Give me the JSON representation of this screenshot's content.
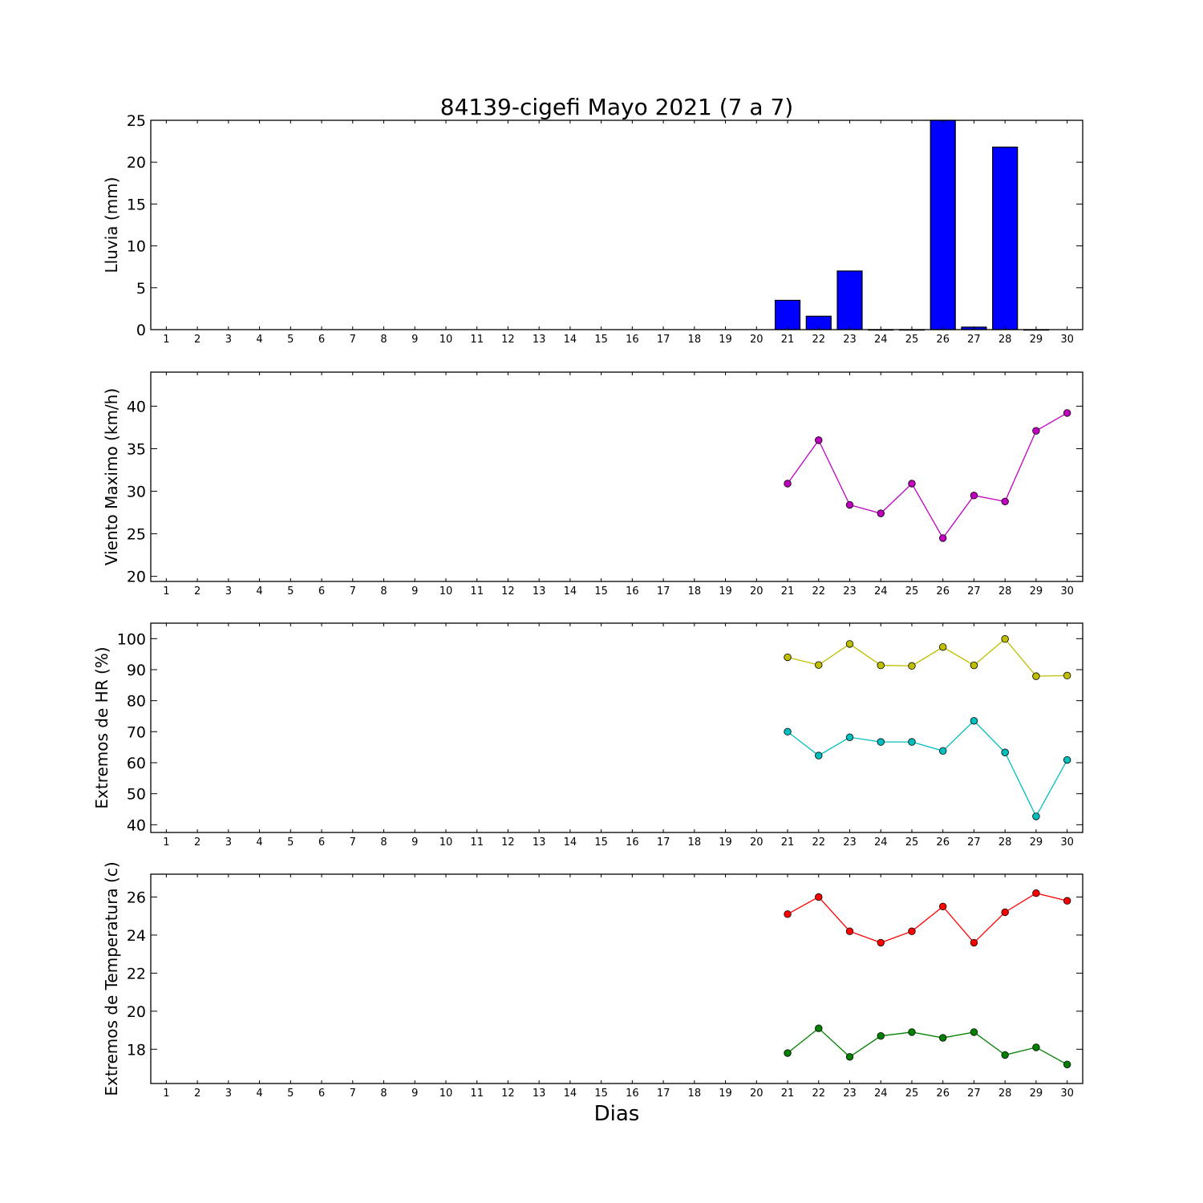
{
  "title": "84139-cigefi Mayo 2021  (7 a 7)",
  "xlabel": "Dias",
  "colors": {
    "bar": "#0000ff",
    "viento": "#bf00bf",
    "hr_max": "#bfbf00",
    "hr_min": "#00bfbf",
    "temp_max": "#ff0000",
    "temp_min": "#008000"
  },
  "chart_data": [
    {
      "type": "bar",
      "ylabel": "Lluvia (mm)",
      "ylim": [
        0,
        25
      ],
      "yticks": [
        0,
        5,
        10,
        15,
        20,
        25
      ],
      "x": [
        1,
        2,
        3,
        4,
        5,
        6,
        7,
        8,
        9,
        10,
        11,
        12,
        13,
        14,
        15,
        16,
        17,
        18,
        19,
        20,
        21,
        22,
        23,
        24,
        25,
        26,
        27,
        28,
        29,
        30
      ],
      "categories": [
        21,
        22,
        23,
        24,
        25,
        26,
        27,
        28,
        29
      ],
      "values": [
        3.5,
        1.6,
        7.0,
        0.0,
        0.0,
        25.0,
        0.3,
        21.8,
        0.0
      ]
    },
    {
      "type": "line",
      "ylabel": "Viento Maximo (km/h)",
      "ylim": [
        19.4,
        44
      ],
      "yticks": [
        20,
        25,
        30,
        35,
        40
      ],
      "x": [
        1,
        2,
        3,
        4,
        5,
        6,
        7,
        8,
        9,
        10,
        11,
        12,
        13,
        14,
        15,
        16,
        17,
        18,
        19,
        20,
        21,
        22,
        23,
        24,
        25,
        26,
        27,
        28,
        29,
        30
      ],
      "series": [
        {
          "x": [
            21,
            22,
            23,
            24,
            25,
            26,
            27,
            28,
            29,
            30
          ],
          "values": [
            30.9,
            36.0,
            28.4,
            27.4,
            30.9,
            24.5,
            29.5,
            28.8,
            37.1,
            39.2
          ]
        }
      ]
    },
    {
      "type": "line",
      "ylabel": "Extremos de HR (%)",
      "ylim": [
        37.5,
        105
      ],
      "yticks": [
        40,
        50,
        60,
        70,
        80,
        90,
        100
      ],
      "x": [
        1,
        2,
        3,
        4,
        5,
        6,
        7,
        8,
        9,
        10,
        11,
        12,
        13,
        14,
        15,
        16,
        17,
        18,
        19,
        20,
        21,
        22,
        23,
        24,
        25,
        26,
        27,
        28,
        29,
        30
      ],
      "series": [
        {
          "x": [
            21,
            22,
            23,
            24,
            25,
            26,
            27,
            28,
            29,
            30
          ],
          "values": [
            94.0,
            91.5,
            98.3,
            91.4,
            91.2,
            97.3,
            91.4,
            99.9,
            87.9,
            88.1
          ]
        },
        {
          "x": [
            21,
            22,
            23,
            24,
            25,
            26,
            27,
            28,
            29,
            30
          ],
          "values": [
            70.0,
            62.3,
            68.2,
            66.7,
            66.7,
            63.8,
            73.5,
            63.3,
            42.7,
            60.9
          ]
        }
      ]
    },
    {
      "type": "line",
      "ylabel": "Extremos de Temperatura (c)",
      "ylim": [
        16.2,
        27.2
      ],
      "yticks": [
        18,
        20,
        22,
        24,
        26
      ],
      "x": [
        1,
        2,
        3,
        4,
        5,
        6,
        7,
        8,
        9,
        10,
        11,
        12,
        13,
        14,
        15,
        16,
        17,
        18,
        19,
        20,
        21,
        22,
        23,
        24,
        25,
        26,
        27,
        28,
        29,
        30
      ],
      "series": [
        {
          "x": [
            21,
            22,
            23,
            24,
            25,
            26,
            27,
            28,
            29,
            30
          ],
          "values": [
            25.1,
            26.0,
            24.2,
            23.6,
            24.2,
            25.5,
            23.6,
            25.2,
            26.2,
            25.8
          ]
        },
        {
          "x": [
            21,
            22,
            23,
            24,
            25,
            26,
            27,
            28,
            29,
            30
          ],
          "values": [
            17.8,
            19.1,
            17.6,
            18.7,
            18.9,
            18.6,
            18.9,
            17.7,
            18.1,
            17.2
          ]
        }
      ]
    }
  ]
}
